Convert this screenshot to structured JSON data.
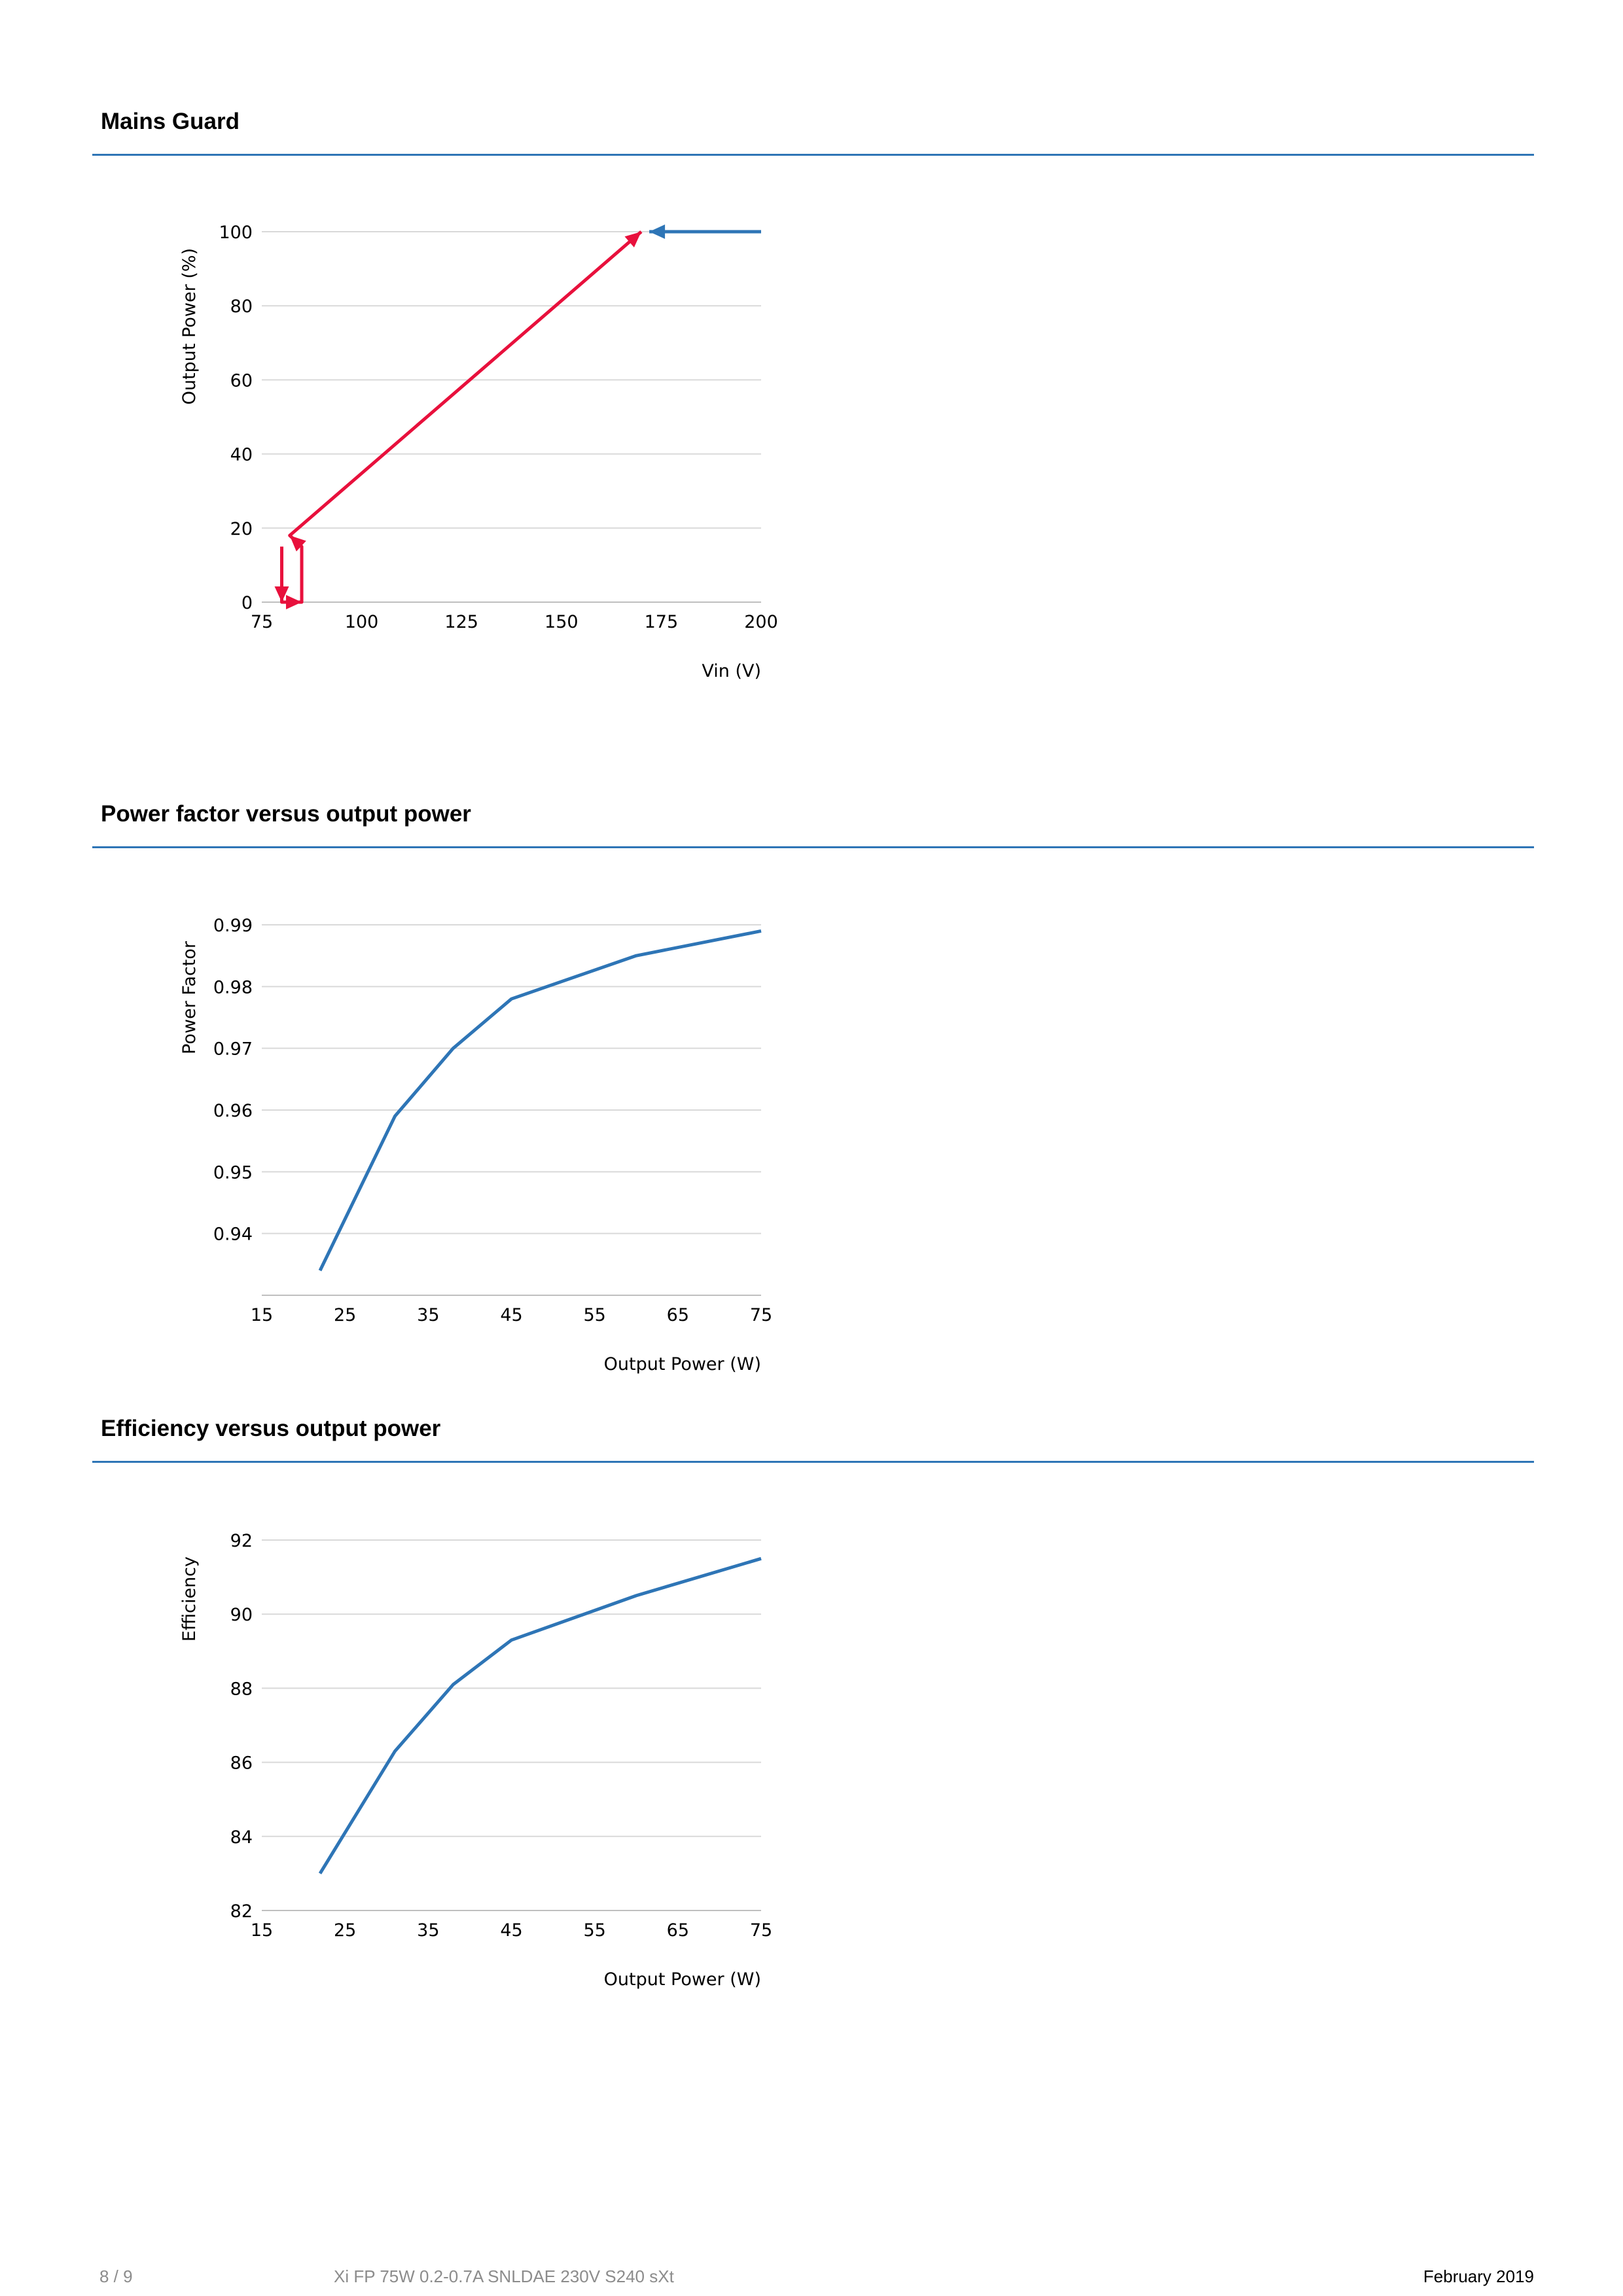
{
  "sections": [
    {
      "title": "Mains Guard"
    },
    {
      "title": "Power factor versus output power"
    },
    {
      "title": "Efficiency versus output power"
    }
  ],
  "chart_data": [
    {
      "type": "line",
      "xlabel": "Vin (V)",
      "ylabel": "Output Power (%)",
      "xlim": [
        75,
        200
      ],
      "ylim": [
        0,
        100
      ],
      "xticks": [
        75,
        100,
        125,
        150,
        175,
        200
      ],
      "yticks": [
        0,
        20,
        40,
        60,
        80,
        100
      ],
      "grid": true,
      "series": [
        {
          "color": "#e8103c",
          "x": [
            80,
            80,
            82,
            85,
            85,
            82,
            170
          ],
          "y": [
            15,
            0,
            0,
            0,
            15,
            18,
            100
          ],
          "arrows_at": [
            1,
            3,
            5,
            6
          ]
        },
        {
          "color": "#2e75b6",
          "x": [
            200,
            172
          ],
          "y": [
            100,
            100
          ],
          "arrows_at": [
            1
          ]
        }
      ]
    },
    {
      "type": "line",
      "xlabel": "Output Power (W)",
      "ylabel": "Power Factor",
      "xlim": [
        15,
        75
      ],
      "ylim": [
        0.93,
        0.99
      ],
      "xticks": [
        15,
        25,
        35,
        45,
        55,
        65,
        75
      ],
      "yticks": [
        0.94,
        0.95,
        0.96,
        0.97,
        0.98,
        0.99
      ],
      "ytick_labels": [
        "0.94",
        "0.95",
        "0.96",
        "0.97",
        "0.98",
        "0.99"
      ],
      "grid": true,
      "series": [
        {
          "color": "#2e75b6",
          "x": [
            22,
            31,
            38,
            45,
            60,
            75
          ],
          "y": [
            0.934,
            0.959,
            0.97,
            0.978,
            0.985,
            0.989
          ]
        }
      ]
    },
    {
      "type": "line",
      "xlabel": "Output Power (W)",
      "ylabel": "Efficiency",
      "xlim": [
        15,
        75
      ],
      "ylim": [
        82,
        92
      ],
      "xticks": [
        15,
        25,
        35,
        45,
        55,
        65,
        75
      ],
      "yticks": [
        82,
        84,
        86,
        88,
        90,
        92
      ],
      "grid": true,
      "series": [
        {
          "color": "#2e75b6",
          "x": [
            22,
            31,
            38,
            45,
            60,
            75
          ],
          "y": [
            83.0,
            86.3,
            88.1,
            89.3,
            90.5,
            91.5
          ]
        }
      ]
    }
  ],
  "footer": {
    "page": "8 / 9",
    "product": "Xi FP 75W 0.2-0.7A SNLDAE 230V S240 sXt",
    "date": "February 2019"
  }
}
